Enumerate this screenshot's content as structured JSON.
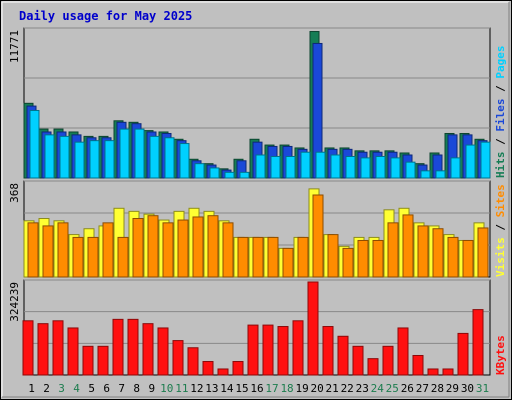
{
  "colors": {
    "background": "#c0c0c0",
    "title": "#0000cc",
    "hits": "#157d55",
    "files": "#1a48d8",
    "pages": "#00d0ff",
    "visits": "#ffff33",
    "sites": "#ff8c00",
    "kbytes": "#ff1010",
    "day_weekday": "#000000",
    "day_weekend": "#1e7d4f",
    "grid": "#888888"
  },
  "chart_data": {
    "type": "bar",
    "title": "Daily usage for May 2025",
    "days": [
      "1",
      "2",
      "3",
      "4",
      "5",
      "6",
      "7",
      "8",
      "9",
      "10",
      "11",
      "12",
      "13",
      "14",
      "15",
      "16",
      "17",
      "18",
      "19",
      "20",
      "21",
      "22",
      "23",
      "24",
      "25",
      "26",
      "27",
      "28",
      "29",
      "30",
      "31"
    ],
    "weekend_days": [
      "3",
      "4",
      "10",
      "11",
      "17",
      "18",
      "24",
      "25",
      "31"
    ],
    "panels": [
      {
        "id": "hits_files_pages",
        "ymax_label": "11771",
        "ylim": [
          0,
          11771
        ],
        "legend": [
          {
            "name": "Hits",
            "color": "#157d55"
          },
          {
            "name": "Files",
            "color": "#1a48d8"
          },
          {
            "name": "Pages",
            "color": "#00d0ff"
          }
        ],
        "series": [
          {
            "name": "Hits",
            "values": [
              5940,
              3890,
              3890,
              3660,
              3310,
              3310,
              4550,
              4430,
              3770,
              3660,
              3080,
              1490,
              1140,
              730,
              1490,
              3080,
              2620,
              2620,
              2390,
              11650,
              2390,
              2390,
              2160,
              2160,
              2160,
              1990,
              1140,
              1990,
              3540,
              3540,
              3080
            ]
          },
          {
            "name": "Files",
            "values": [
              5720,
              3660,
              3660,
              3430,
              3200,
              3200,
              4430,
              4320,
              3660,
              3540,
              2970,
              1370,
              1030,
              630,
              1370,
              2850,
              2510,
              2510,
              2280,
              10700,
              2280,
              2280,
              2050,
              2050,
              2050,
              1830,
              1030,
              1830,
              3430,
              3430,
              2970
            ]
          },
          {
            "name": "Pages",
            "values": [
              5370,
              3430,
              3310,
              2850,
              2970,
              2970,
              3890,
              3890,
              3310,
              3200,
              2740,
              1140,
              800,
              450,
              450,
              1830,
              1710,
              1710,
              2050,
              2050,
              1830,
              1710,
              1600,
              1710,
              1600,
              1260,
              570,
              570,
              1600,
              2620,
              2850
            ]
          }
        ]
      },
      {
        "id": "visits_sites",
        "ymax_label": "368",
        "ylim": [
          0,
          368
        ],
        "legend": [
          {
            "name": "Visits",
            "color": "#ffff33"
          },
          {
            "name": "Sites",
            "color": "#ff8c00"
          }
        ],
        "series": [
          {
            "name": "Visits",
            "values": [
              220,
              229,
              220,
              166,
              189,
              200,
              269,
              257,
              246,
              223,
              257,
              269,
              257,
              220,
              155,
              155,
              155,
              112,
              155,
              345,
              166,
              120,
              155,
              155,
              263,
              269,
              212,
              200,
              166,
              143,
              212
            ]
          },
          {
            "name": "Sites",
            "values": [
              212,
              200,
              212,
              155,
              155,
              212,
              155,
              229,
              240,
              212,
              223,
              235,
              240,
              212,
              155,
              155,
              155,
              112,
              155,
              321,
              166,
              112,
              143,
              143,
              212,
              243,
              200,
              189,
              155,
              143,
              192
            ]
          }
        ]
      },
      {
        "id": "kbytes",
        "ymax_label": "324239",
        "ylim": [
          0,
          324239
        ],
        "legend": [
          {
            "name": "KBytes",
            "color": "#ff1010"
          }
        ],
        "series": [
          {
            "name": "KBytes",
            "values": [
              189000,
              179000,
              189000,
              164000,
              100000,
              100000,
              194000,
              194000,
              179000,
              164000,
              120000,
              95000,
              47000,
              21000,
              47000,
              174000,
              174000,
              169000,
              189000,
              324239,
              169000,
              135000,
              100000,
              57000,
              100000,
              164000,
              68000,
              21000,
              21000,
              145000,
              228000
            ]
          }
        ]
      }
    ]
  }
}
